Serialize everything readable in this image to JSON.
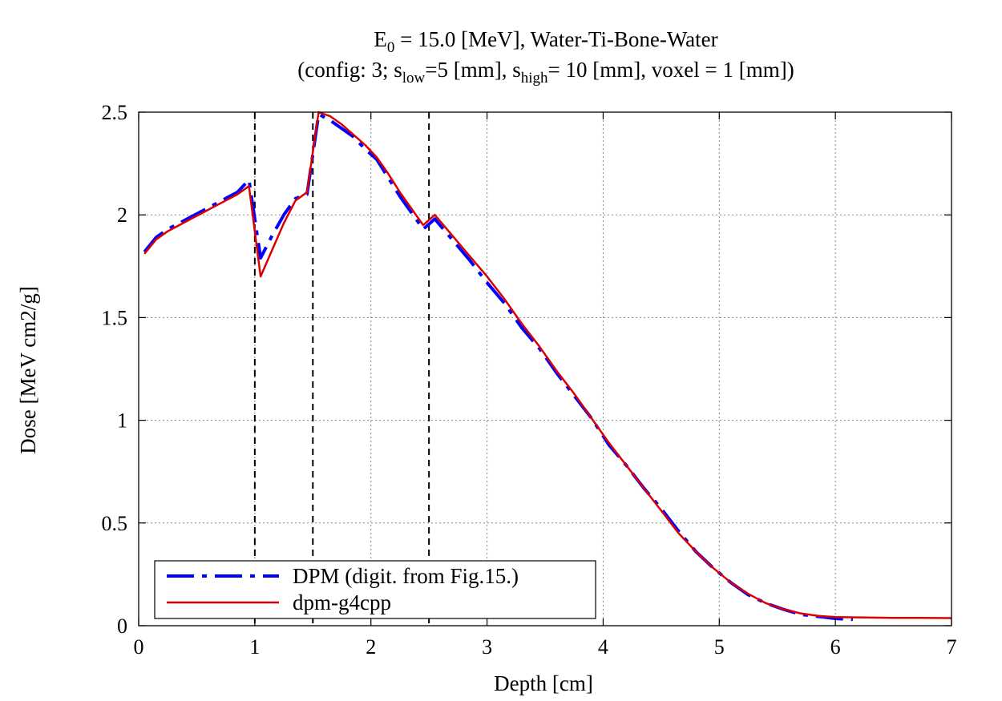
{
  "chart_data": {
    "type": "line",
    "title_line1": {
      "prefix": "E",
      "prefix_sub": "0",
      "rest": " = 15.0 [MeV], Water-Ti-Bone-Water"
    },
    "title_line2": {
      "p1": "(config: 3; s",
      "sub1": "low",
      "p2": "=5 [mm], s",
      "sub2": "high",
      "p3": "= 10 [mm], voxel = 1 [mm])"
    },
    "xlabel": "Depth [cm]",
    "ylabel": "Dose [MeV cm2/g]",
    "xlim": [
      0,
      7
    ],
    "ylim": [
      0,
      2.5
    ],
    "xticks": [
      0,
      1,
      2,
      3,
      4,
      5,
      6,
      7
    ],
    "xtick_labels": [
      "0",
      "1",
      "2",
      "3",
      "4",
      "5",
      "6",
      "7"
    ],
    "yticks": [
      0,
      0.5,
      1,
      1.5,
      2,
      2.5
    ],
    "ytick_labels": [
      "0",
      "0.5",
      "1",
      "1.5",
      "2",
      "2.5"
    ],
    "grid": true,
    "legend_position": "bottom-left",
    "vertical_lines": [
      1.0,
      1.5,
      2.5
    ],
    "series": [
      {
        "name": "DPM (digit. from Fig.15.)",
        "color": "#0000ff",
        "style": "dash-dot",
        "x": [
          0.05,
          0.15,
          0.25,
          0.35,
          0.45,
          0.55,
          0.65,
          0.75,
          0.85,
          0.95,
          1.05,
          1.15,
          1.25,
          1.35,
          1.45,
          1.55,
          1.65,
          1.75,
          1.85,
          1.95,
          2.05,
          2.15,
          2.25,
          2.35,
          2.45,
          2.55,
          2.7,
          2.85,
          3.0,
          3.15,
          3.3,
          3.45,
          3.6,
          3.75,
          3.9,
          4.05,
          4.2,
          4.35,
          4.5,
          4.65,
          4.8,
          4.95,
          5.1,
          5.25,
          5.4,
          5.55,
          5.7,
          5.85,
          6.0,
          6.15
        ],
        "y": [
          1.82,
          1.89,
          1.93,
          1.96,
          1.99,
          2.02,
          2.05,
          2.08,
          2.11,
          2.17,
          1.79,
          1.9,
          2.0,
          2.08,
          2.1,
          2.49,
          2.46,
          2.42,
          2.38,
          2.32,
          2.27,
          2.18,
          2.09,
          2.01,
          1.93,
          1.98,
          1.88,
          1.78,
          1.67,
          1.57,
          1.45,
          1.35,
          1.23,
          1.12,
          1.01,
          0.88,
          0.78,
          0.67,
          0.57,
          0.46,
          0.36,
          0.28,
          0.21,
          0.15,
          0.11,
          0.08,
          0.055,
          0.045,
          0.035,
          0.03
        ]
      },
      {
        "name": "dpm-g4cpp",
        "color": "#dd0000",
        "style": "solid",
        "x": [
          0.05,
          0.15,
          0.25,
          0.35,
          0.45,
          0.55,
          0.65,
          0.75,
          0.85,
          0.95,
          1.05,
          1.15,
          1.25,
          1.35,
          1.45,
          1.55,
          1.65,
          1.75,
          1.85,
          1.95,
          2.05,
          2.15,
          2.25,
          2.35,
          2.45,
          2.55,
          2.7,
          2.85,
          3.0,
          3.15,
          3.3,
          3.45,
          3.6,
          3.75,
          3.9,
          4.05,
          4.2,
          4.35,
          4.5,
          4.65,
          4.8,
          4.95,
          5.1,
          5.25,
          5.4,
          5.55,
          5.7,
          5.85,
          6.0,
          6.25,
          6.5,
          6.75,
          7.0
        ],
        "y": [
          1.81,
          1.88,
          1.92,
          1.95,
          1.98,
          2.01,
          2.04,
          2.07,
          2.1,
          2.14,
          1.7,
          1.83,
          1.96,
          2.07,
          2.11,
          2.5,
          2.48,
          2.44,
          2.39,
          2.34,
          2.28,
          2.2,
          2.11,
          2.03,
          1.95,
          2.0,
          1.9,
          1.8,
          1.7,
          1.59,
          1.47,
          1.36,
          1.24,
          1.13,
          1.01,
          0.89,
          0.78,
          0.67,
          0.56,
          0.45,
          0.36,
          0.28,
          0.21,
          0.155,
          0.11,
          0.08,
          0.06,
          0.048,
          0.042,
          0.04,
          0.038,
          0.038,
          0.037
        ]
      }
    ]
  }
}
